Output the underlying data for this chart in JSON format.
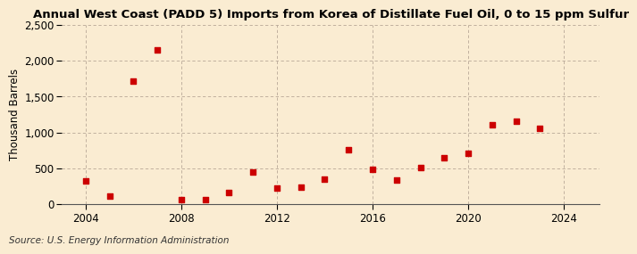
{
  "title": "Annual West Coast (PADD 5) Imports from Korea of Distillate Fuel Oil, 0 to 15 ppm Sulfur",
  "ylabel": "Thousand Barrels",
  "source": "Source: U.S. Energy Information Administration",
  "background_color": "#faecd2",
  "years": [
    2004,
    2005,
    2006,
    2007,
    2008,
    2009,
    2010,
    2011,
    2012,
    2013,
    2014,
    2015,
    2016,
    2017,
    2018,
    2019,
    2020,
    2021,
    2022,
    2023
  ],
  "values": [
    320,
    110,
    1720,
    2150,
    55,
    65,
    155,
    450,
    220,
    240,
    350,
    760,
    480,
    330,
    510,
    640,
    710,
    1100,
    1160,
    1060
  ],
  "marker_color": "#cc0000",
  "xlim": [
    2003.0,
    2025.5
  ],
  "ylim": [
    0,
    2500
  ],
  "yticks": [
    0,
    500,
    1000,
    1500,
    2000,
    2500
  ],
  "xticks": [
    2004,
    2008,
    2012,
    2016,
    2020,
    2024
  ],
  "title_fontsize": 9.5,
  "label_fontsize": 8.5,
  "tick_fontsize": 8.5,
  "source_fontsize": 7.5
}
